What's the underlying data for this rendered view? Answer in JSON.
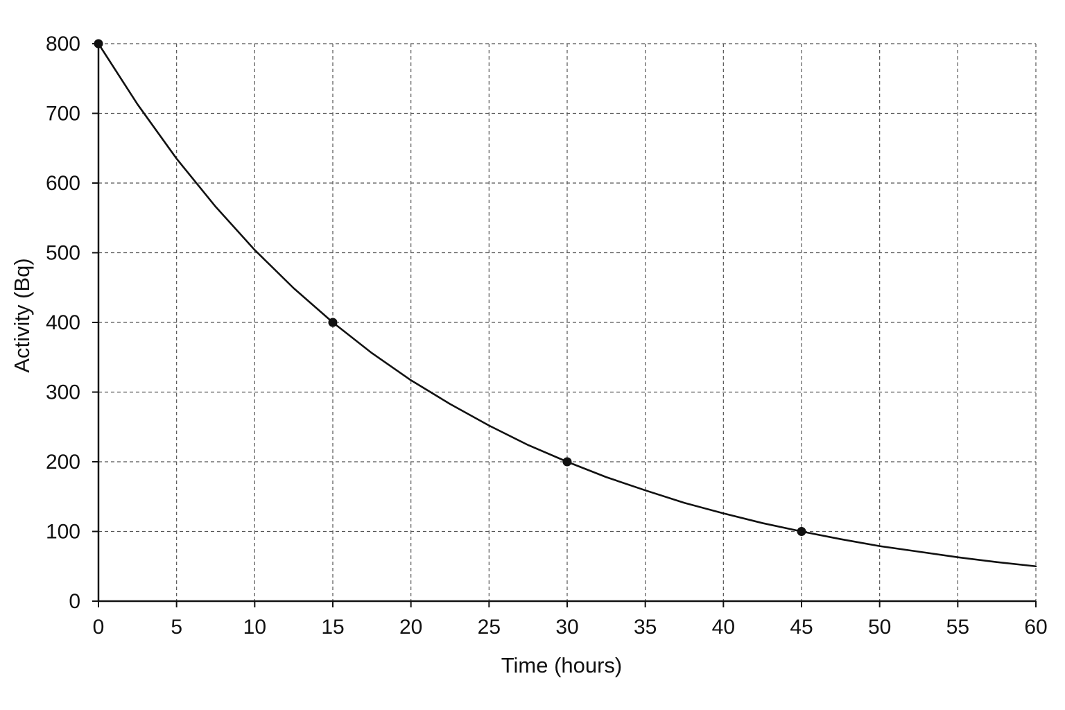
{
  "chart_data": {
    "type": "line",
    "title": "",
    "xlabel": "Time (hours)",
    "ylabel": "Activity (Bq)",
    "xlim": [
      0,
      60
    ],
    "ylim": [
      0,
      800
    ],
    "x_ticks": [
      0,
      5,
      10,
      15,
      20,
      25,
      30,
      35,
      40,
      45,
      50,
      55,
      60
    ],
    "y_ticks": [
      0,
      100,
      200,
      300,
      400,
      500,
      600,
      700,
      800
    ],
    "grid": true,
    "grid_style": "dashed",
    "curve": {
      "x": [
        0,
        2.5,
        5,
        7.5,
        10,
        12.5,
        15,
        17.5,
        20,
        22.5,
        25,
        27.5,
        30,
        32.5,
        35,
        37.5,
        40,
        42.5,
        45,
        47.5,
        50,
        52.5,
        55,
        57.5,
        60
      ],
      "y": [
        800,
        713,
        635,
        566,
        504,
        449,
        400,
        356,
        317,
        283,
        252,
        224,
        200,
        178,
        159,
        141,
        126,
        112,
        100,
        89,
        79,
        71,
        63,
        56,
        50
      ]
    },
    "points": [
      {
        "x": 0,
        "y": 800
      },
      {
        "x": 15,
        "y": 400
      },
      {
        "x": 30,
        "y": 200
      },
      {
        "x": 45,
        "y": 100
      }
    ],
    "colors": {
      "line": "#111111",
      "grid": "#555555",
      "marker": "#111111"
    }
  }
}
